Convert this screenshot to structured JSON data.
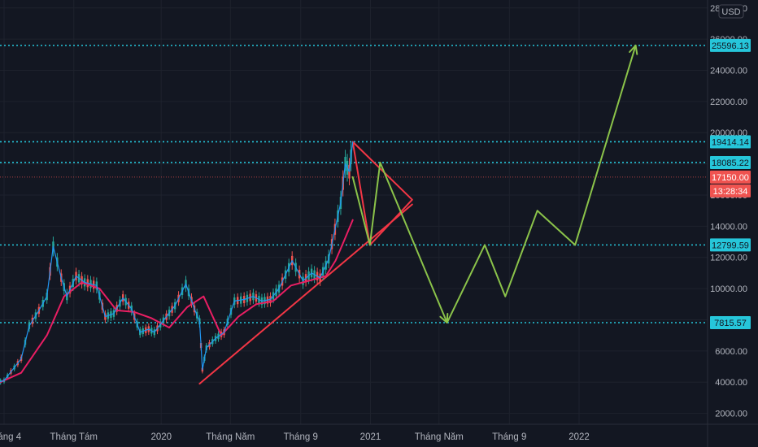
{
  "currency": "USD",
  "chart_data": {
    "type": "line",
    "title": "",
    "price_axis": {
      "ylim": [
        1300,
        28300
      ],
      "ticks": [
        "28000.00",
        "26000.00",
        "24000.00",
        "22000.00",
        "20000.00",
        "18000.00",
        "16000.00",
        "14000.00",
        "12000.00",
        "10000.00",
        "8000.00",
        "6000.00",
        "4000.00",
        "2000.00"
      ],
      "tick_values": [
        28000,
        26000,
        24000,
        22000,
        20000,
        18000,
        16000,
        14000,
        12000,
        10000,
        8000,
        6000,
        4000,
        2000
      ]
    },
    "time_axis": {
      "labels": [
        "Tháng 4",
        "Tháng Tám",
        "2020",
        "Tháng Năm",
        "Tháng 9",
        "2021",
        "Tháng Năm",
        "Tháng 9",
        "2022"
      ],
      "tick_dates": [
        "2019-04-01",
        "2019-08-01",
        "2020-01-01",
        "2020-05-01",
        "2020-09-01",
        "2021-01-01",
        "2021-05-01",
        "2021-09-01",
        "2022-01-01"
      ]
    },
    "horizontal_levels": [
      {
        "value": 25596.13,
        "label": "25596.13"
      },
      {
        "value": 19414.14,
        "label": "19414.14"
      },
      {
        "value": 18085.22,
        "label": "18085.22"
      },
      {
        "value": 12799.59,
        "label": "12799.59"
      },
      {
        "value": 7815.57,
        "label": "7815.57"
      }
    ],
    "last_price": {
      "value": 17150.0,
      "label": "17150.00",
      "countdown": "13:28:34"
    },
    "price_series": {
      "name": "",
      "x": [
        "2019-03-01",
        "2019-04-01",
        "2019-05-01",
        "2019-05-15",
        "2019-06-01",
        "2019-06-15",
        "2019-06-26",
        "2019-07-10",
        "2019-07-20",
        "2019-08-05",
        "2019-08-20",
        "2019-09-10",
        "2019-09-25",
        "2019-10-10",
        "2019-10-26",
        "2019-11-10",
        "2019-11-25",
        "2019-12-10",
        "2019-12-20",
        "2020-01-10",
        "2020-01-25",
        "2020-02-13",
        "2020-02-28",
        "2020-03-08",
        "2020-03-13",
        "2020-03-20",
        "2020-04-05",
        "2020-04-20",
        "2020-05-08",
        "2020-05-25",
        "2020-06-10",
        "2020-06-25",
        "2020-07-10",
        "2020-07-25",
        "2020-08-17",
        "2020-09-05",
        "2020-09-20",
        "2020-10-05",
        "2020-10-20",
        "2020-10-31",
        "2020-11-10",
        "2020-11-18",
        "2020-11-25",
        "2020-12-01"
      ],
      "values": [
        3800,
        4100,
        5500,
        7600,
        8600,
        9500,
        12700,
        10700,
        9500,
        10800,
        10400,
        10200,
        8200,
        8400,
        9400,
        8700,
        7200,
        7400,
        7200,
        8200,
        8900,
        10300,
        8700,
        7900,
        4800,
        6200,
        6800,
        7200,
        9200,
        9300,
        9500,
        9200,
        9300,
        10000,
        11800,
        10500,
        11000,
        10700,
        11900,
        13800,
        15500,
        18000,
        17500,
        19400
      ]
    },
    "ma_series": {
      "name": "",
      "x": [
        "2019-03-01",
        "2019-05-01",
        "2019-06-15",
        "2019-07-15",
        "2019-08-15",
        "2019-09-15",
        "2019-10-15",
        "2019-11-15",
        "2019-12-15",
        "2020-01-15",
        "2020-02-15",
        "2020-03-15",
        "2020-04-15",
        "2020-05-15",
        "2020-06-15",
        "2020-07-15",
        "2020-08-15",
        "2020-09-15",
        "2020-10-15",
        "2020-11-01",
        "2020-11-15",
        "2020-12-01"
      ],
      "values": [
        3600,
        4600,
        7000,
        9500,
        10400,
        10000,
        8600,
        8500,
        8100,
        7500,
        8800,
        9500,
        7000,
        8200,
        9000,
        9200,
        10200,
        10500,
        10800,
        11800,
        13000,
        14400
      ]
    },
    "projection": {
      "name": "",
      "x": [
        "2020-12-01",
        "2020-12-31",
        "2021-01-18",
        "2021-05-15",
        "2021-07-20",
        "2021-08-25",
        "2021-10-20",
        "2021-12-25",
        "2022-04-10"
      ],
      "values": [
        17150,
        12799.59,
        18085.22,
        7815.57,
        12799.59,
        9500,
        15000,
        12799.59,
        25596.13
      ]
    },
    "triangle": {
      "x": [
        "2020-12-01",
        "2021-03-15",
        "2020-12-31",
        "2020-12-01"
      ],
      "values": [
        19414.14,
        15700,
        12799.59,
        19414.14
      ]
    },
    "trendline": {
      "x": [
        "2020-03-08",
        "2021-03-15"
      ],
      "values": [
        3900,
        15400
      ]
    }
  }
}
